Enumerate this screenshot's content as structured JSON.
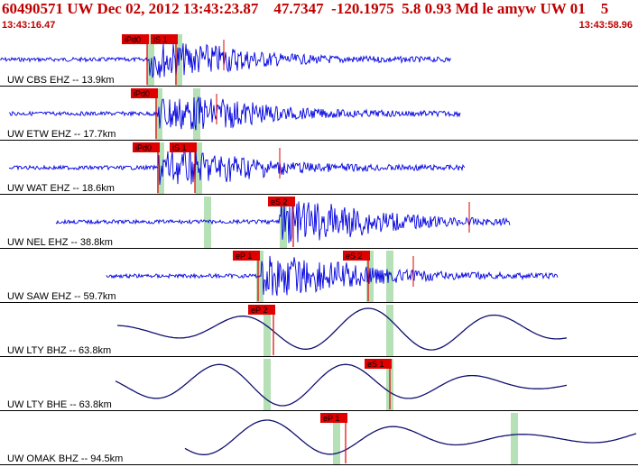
{
  "header": {
    "title": "60490571 UW Dec 02, 2012 13:43:23.87    47.7347  -120.1975  5.8 0.93 Md le amyw UW 01    5",
    "start_time": "13:43:16.47",
    "end_time": "13:43:58.96"
  },
  "colors": {
    "header_text": "#c00000",
    "trace_short_period": "#0000e0",
    "trace_broadband": "#101070",
    "pick_marker": "#e00000",
    "theoretical_window": "#b6e0b6"
  },
  "traces": [
    {
      "label": "UW CBS EHZ -- 13.9km",
      "type": "sp",
      "x0": 0,
      "x1": 500,
      "onset": 165,
      "amp": 18,
      "picks": [
        {
          "label": "iPd0",
          "x": 163
        },
        {
          "label": "iS 1",
          "x": 195
        }
      ],
      "green": [
        167,
        198
      ],
      "extra_red": [
        248
      ]
    },
    {
      "label": "UW ETW EHZ -- 17.7km",
      "type": "sp",
      "x0": 10,
      "x1": 510,
      "onset": 175,
      "amp": 19,
      "picks": [
        {
          "label": "iPd0",
          "x": 173
        },
        {
          "label": "",
          "x": 0
        }
      ],
      "green": [
        176,
        218
      ],
      "extra_red": [
        240
      ]
    },
    {
      "label": "UW WAT EHZ -- 18.6km",
      "type": "sp",
      "x0": 10,
      "x1": 515,
      "onset": 176,
      "amp": 18,
      "picks": [
        {
          "label": "iPd0",
          "x": 175
        },
        {
          "label": "iS 1",
          "x": 216
        }
      ],
      "green": [
        178,
        220
      ],
      "extra_red": [
        310
      ]
    },
    {
      "label": "UW NEL EHZ -- 38.8km",
      "type": "sp",
      "x0": 62,
      "x1": 565,
      "onset": 310,
      "amp": 22,
      "picks": [
        {
          "label": "eS 2",
          "x": 325
        }
      ],
      "green": [
        230,
        314
      ],
      "extra_red": [
        520
      ]
    },
    {
      "label": "UW SAW EHZ -- 59.7km",
      "type": "sp",
      "x0": 118,
      "x1": 618,
      "onset": 290,
      "amp": 22,
      "picks": [
        {
          "label": "eP 1",
          "x": 286
        },
        {
          "label": "eS 2",
          "x": 408
        }
      ],
      "green": [
        288,
        410,
        432
      ],
      "extra_red": [
        458
      ]
    },
    {
      "label": "UW LTY BHZ -- 63.8km",
      "type": "bb",
      "x0": 130,
      "x1": 628,
      "onset": 0,
      "amp": 24,
      "picks": [
        {
          "label": "eP 2",
          "x": 303
        }
      ],
      "green": [
        296,
        432
      ],
      "extra_red": []
    },
    {
      "label": "UW LTY BHE -- 63.8km",
      "type": "bb",
      "x0": 128,
      "x1": 628,
      "onset": 0,
      "amp": 24,
      "picks": [
        {
          "label": "eS 1",
          "x": 432
        }
      ],
      "green": [
        296,
        432
      ],
      "extra_red": []
    },
    {
      "label": "UW OMAK BHZ -- 94.5km",
      "type": "bb",
      "x0": 205,
      "x1": 705,
      "onset": 0,
      "amp": 20,
      "picks": [
        {
          "label": "eP 1",
          "x": 383
        }
      ],
      "green": [
        373,
        570
      ],
      "extra_red": []
    }
  ]
}
